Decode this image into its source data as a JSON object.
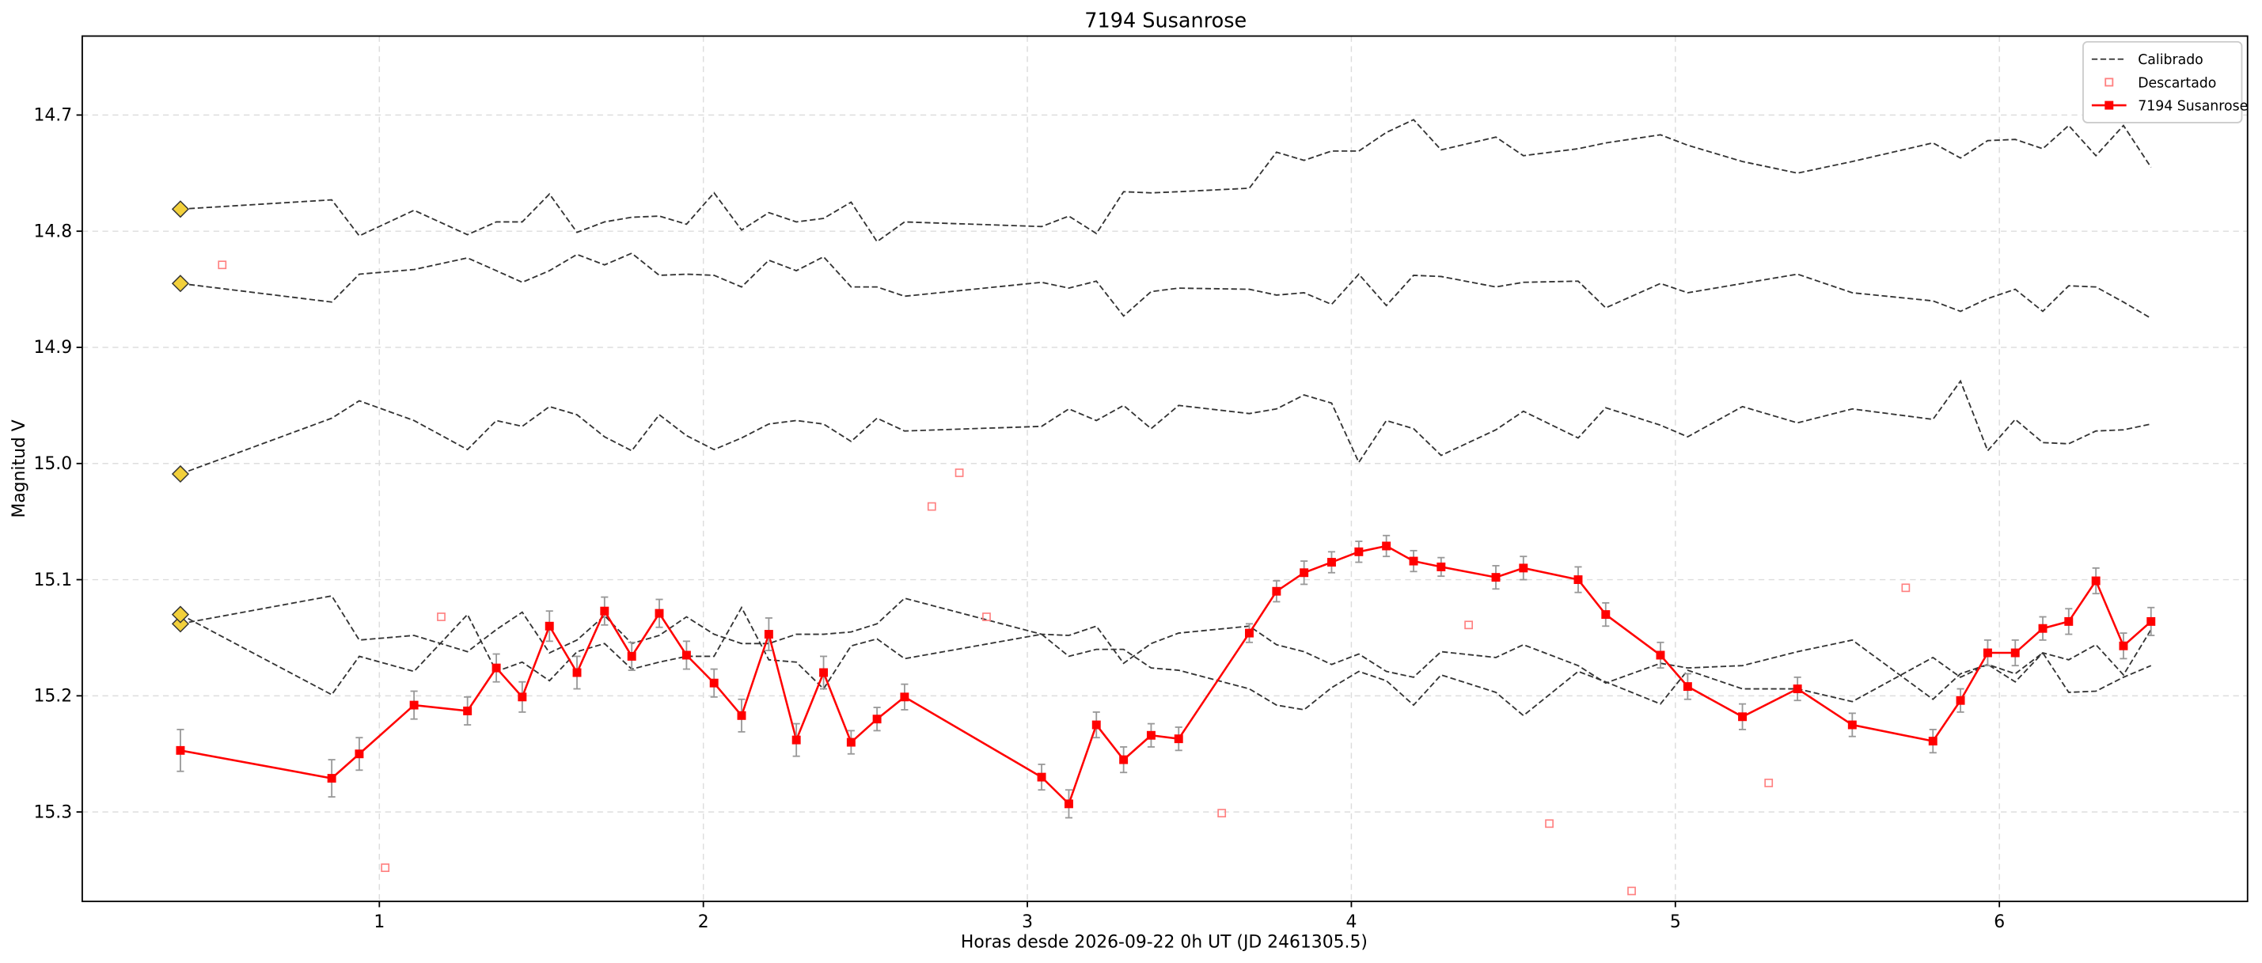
{
  "chart_data": {
    "type": "line",
    "title": "7194 Susanrose",
    "x_label": "Horas desde 2026-09-22 0h UT (JD 2461305.5)",
    "y_label": "Magnitud V",
    "xlim": [
      0.083,
      6.766
    ],
    "xticks": [
      1,
      2,
      3,
      4,
      5,
      6
    ],
    "ylim": [
      14.632,
      15.377
    ],
    "y_inverted": true,
    "yticks": [
      14.7,
      14.8,
      14.9,
      {
        "value": 15,
        "label": "15.0"
      },
      15.1,
      15.2,
      15.3
    ],
    "grid": true,
    "legend": "upper right",
    "start_marker_color": "#f2d03b",
    "x": [
      0.386,
      0.853,
      0.938,
      1.107,
      1.272,
      1.361,
      1.441,
      1.525,
      1.61,
      1.695,
      1.779,
      1.864,
      1.948,
      2.033,
      2.118,
      2.202,
      2.287,
      2.371,
      2.456,
      2.536,
      2.621,
      3.044,
      3.128,
      3.213,
      3.297,
      3.382,
      3.467,
      3.685,
      3.769,
      3.854,
      3.939,
      4.023,
      4.108,
      4.192,
      4.277,
      4.446,
      4.531,
      4.7,
      4.785,
      4.954,
      5.038,
      5.207,
      5.377,
      5.546,
      5.795,
      5.88,
      5.964,
      6.049,
      6.134,
      6.214,
      6.298,
      6.383,
      6.468
    ],
    "series": [
      {
        "name": "Calibrado",
        "style": "dashed",
        "color": "#333333",
        "values": [
          14.781,
          14.773,
          14.804,
          14.782,
          14.803,
          14.792,
          14.792,
          14.768,
          14.801,
          14.792,
          14.788,
          14.787,
          14.794,
          14.767,
          14.799,
          14.784,
          14.792,
          14.789,
          14.775,
          14.809,
          14.792,
          14.796,
          14.787,
          14.802,
          14.766,
          14.767,
          14.766,
          14.763,
          14.732,
          14.739,
          14.731,
          14.731,
          14.715,
          14.704,
          14.73,
          14.719,
          14.735,
          14.729,
          14.724,
          14.717,
          14.726,
          14.74,
          14.75,
          14.74,
          14.724,
          14.737,
          14.722,
          14.721,
          14.729,
          14.709,
          14.735,
          14.709,
          14.745
        ]
      },
      {
        "style": "dashed",
        "color": "#333333",
        "values": [
          14.845,
          14.861,
          14.837,
          14.833,
          14.823,
          14.834,
          14.844,
          14.834,
          14.82,
          14.829,
          14.819,
          14.838,
          14.837,
          14.838,
          14.848,
          14.825,
          14.834,
          14.822,
          14.848,
          14.848,
          14.856,
          14.844,
          14.849,
          14.843,
          14.873,
          14.852,
          14.849,
          14.85,
          14.855,
          14.853,
          14.863,
          14.837,
          14.864,
          14.838,
          14.839,
          14.848,
          14.844,
          14.843,
          14.866,
          14.845,
          14.853,
          14.845,
          14.837,
          14.853,
          14.86,
          14.869,
          14.858,
          14.85,
          14.869,
          14.847,
          14.848,
          14.861,
          14.875
        ]
      },
      {
        "style": "dashed",
        "color": "#333333",
        "values": [
          15.009,
          14.961,
          14.946,
          14.963,
          14.988,
          14.963,
          14.968,
          14.951,
          14.958,
          14.977,
          14.989,
          14.958,
          14.976,
          14.988,
          14.978,
          14.966,
          14.963,
          14.966,
          14.981,
          14.961,
          14.972,
          14.968,
          14.953,
          14.963,
          14.95,
          14.97,
          14.95,
          14.957,
          14.953,
          14.941,
          14.948,
          14.999,
          14.963,
          14.97,
          14.993,
          14.971,
          14.955,
          14.978,
          14.952,
          14.967,
          14.977,
          14.951,
          14.965,
          14.953,
          14.962,
          14.929,
          14.989,
          14.962,
          14.982,
          14.983,
          14.972,
          14.971,
          14.966
        ]
      },
      {
        "style": "dashed",
        "color": "#333333",
        "values": [
          15.138,
          15.114,
          15.152,
          15.148,
          15.162,
          15.143,
          15.128,
          15.163,
          15.152,
          15.131,
          15.155,
          15.148,
          15.132,
          15.147,
          15.155,
          15.155,
          15.147,
          15.147,
          15.145,
          15.138,
          15.116,
          15.147,
          15.148,
          15.14,
          15.172,
          15.155,
          15.146,
          15.14,
          15.156,
          15.162,
          15.173,
          15.164,
          15.179,
          15.184,
          15.162,
          15.167,
          15.156,
          15.174,
          15.189,
          15.172,
          15.176,
          15.174,
          15.162,
          15.152,
          15.203,
          15.181,
          15.173,
          15.188,
          15.163,
          15.169,
          15.156,
          15.182,
          15.143
        ]
      },
      {
        "style": "dashed",
        "color": "#333333",
        "values": [
          15.13,
          15.199,
          15.166,
          15.179,
          15.13,
          15.179,
          15.171,
          15.187,
          15.162,
          15.155,
          15.177,
          15.171,
          15.166,
          15.166,
          15.124,
          15.169,
          15.171,
          15.194,
          15.157,
          15.151,
          15.168,
          15.147,
          15.166,
          15.16,
          15.16,
          15.176,
          15.178,
          15.194,
          15.208,
          15.212,
          15.193,
          15.179,
          15.187,
          15.208,
          15.182,
          15.197,
          15.217,
          15.179,
          15.188,
          15.207,
          15.178,
          15.194,
          15.194,
          15.205,
          15.167,
          15.184,
          15.173,
          15.181,
          15.163,
          15.197,
          15.196,
          15.184,
          15.174
        ]
      },
      {
        "name": "Descartado",
        "style": "open-square",
        "color": "#ff8080",
        "x": [
          0.515,
          1.018,
          1.191,
          2.705,
          2.79,
          2.874,
          3.6,
          4.362,
          4.611,
          4.865,
          5.288,
          5.711
        ],
        "values": [
          14.829,
          15.348,
          15.132,
          15.037,
          15.008,
          15.132,
          15.301,
          15.139,
          15.31,
          15.368,
          15.275,
          15.107
        ]
      },
      {
        "name": "7194 Susanrose",
        "style": "line-marker",
        "color": "#ff0000",
        "error_color": "#999999",
        "values": [
          15.247,
          15.271,
          15.25,
          15.208,
          15.213,
          15.176,
          15.201,
          15.14,
          15.18,
          15.127,
          15.166,
          15.129,
          15.165,
          15.189,
          15.217,
          15.147,
          15.238,
          15.18,
          15.24,
          15.22,
          15.201,
          15.27,
          15.293,
          15.225,
          15.255,
          15.234,
          15.237,
          15.146,
          15.11,
          15.094,
          15.085,
          15.076,
          15.071,
          15.084,
          15.089,
          15.098,
          15.09,
          15.1,
          15.13,
          15.165,
          15.192,
          15.218,
          15.194,
          15.225,
          15.239,
          15.204,
          15.163,
          15.163,
          15.142,
          15.136,
          15.101,
          15.157,
          15.136
        ],
        "errors": [
          0.018,
          0.016,
          0.014,
          0.012,
          0.012,
          0.012,
          0.013,
          0.013,
          0.014,
          0.012,
          0.012,
          0.012,
          0.012,
          0.012,
          0.014,
          0.014,
          0.014,
          0.014,
          0.01,
          0.01,
          0.011,
          0.011,
          0.012,
          0.011,
          0.011,
          0.01,
          0.01,
          0.008,
          0.009,
          0.01,
          0.009,
          0.009,
          0.009,
          0.009,
          0.008,
          0.01,
          0.01,
          0.011,
          0.01,
          0.011,
          0.011,
          0.011,
          0.01,
          0.01,
          0.01,
          0.01,
          0.011,
          0.011,
          0.01,
          0.011,
          0.011,
          0.011,
          0.012
        ]
      }
    ]
  }
}
